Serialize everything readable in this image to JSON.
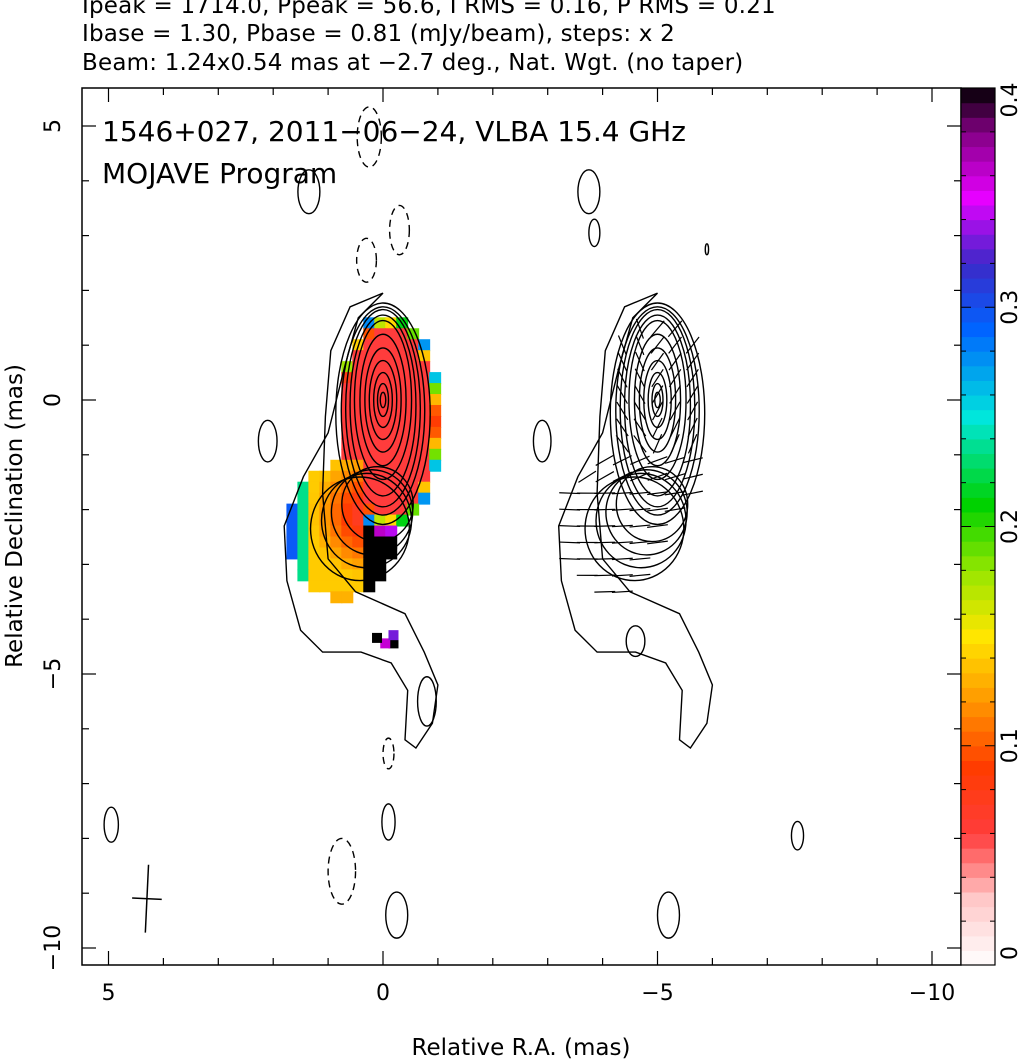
{
  "header": {
    "line1": "Ipeak = 1714.0, Ppeak = 56.6, I RMS = 0.16, P RMS = 0.21",
    "line2": "Ibase = 1.30, Pbase = 0.81 (mJy/beam), steps: x 2",
    "line3": "Beam: 1.24x0.54 mas at −2.7 deg., Nat. Wgt. (no taper)"
  },
  "chart_data": {
    "type": "contour",
    "title": "1546+027, 2011−06−24, VLBA 15.4 GHz",
    "subtitle": "MOJAVE Program",
    "xlabel": "Relative R.A. (mas)",
    "ylabel": "Relative Declination (mas)",
    "xlim": [
      5.5,
      -10.5
    ],
    "ylim": [
      -10.3,
      5.8
    ],
    "xticks": [
      5,
      0,
      -5,
      -10
    ],
    "xtick_labels": [
      "5",
      "0",
      "−5",
      "−10"
    ],
    "yticks": [
      5,
      0,
      -5,
      -10
    ],
    "ytick_labels": [
      "5",
      "0",
      "−5",
      "−10"
    ],
    "colorbar": {
      "min": 0,
      "max": 0.4,
      "ticks": [
        0,
        0.1,
        0.2,
        0.3,
        0.4
      ],
      "tick_labels": [
        "0",
        "0.1",
        "0.2",
        "0.3",
        "0.4"
      ]
    },
    "beam": {
      "major_mas": 1.24,
      "minor_mas": 0.54,
      "pa_deg": -2.7,
      "center": [
        4.3,
        -9.1
      ]
    },
    "peak": {
      "x": 0.0,
      "y": 0.0
    },
    "panel_offset_x": -5.0,
    "contour_levels_mjy": [
      1.3,
      2.6,
      5.2,
      10.4,
      20.8,
      41.6,
      83.2,
      166.4,
      332.8,
      665.6,
      1331.2
    ],
    "extended_emission": {
      "outer": [
        [
          0.0,
          1.95
        ],
        [
          0.6,
          1.7
        ],
        [
          0.95,
          0.9
        ],
        [
          1.05,
          -0.3
        ],
        [
          1.1,
          -1.7
        ],
        [
          1.0,
          -2.9
        ],
        [
          0.5,
          -3.5
        ],
        [
          -0.4,
          -3.9
        ],
        [
          -0.75,
          -4.6
        ],
        [
          -1.0,
          -5.2
        ],
        [
          -0.9,
          -5.9
        ],
        [
          -0.6,
          -6.35
        ],
        [
          -0.4,
          -6.2
        ],
        [
          -0.45,
          -5.3
        ],
        [
          -0.15,
          -4.8
        ],
        [
          0.4,
          -4.6
        ],
        [
          1.1,
          -4.6
        ],
        [
          1.5,
          -4.2
        ],
        [
          1.75,
          -3.3
        ],
        [
          1.8,
          -2.3
        ],
        [
          1.45,
          -1.4
        ],
        [
          1.0,
          -0.6
        ],
        [
          0.7,
          0.6
        ],
        [
          0.45,
          1.5
        ]
      ],
      "levels": [
        {
          "dy": -0.25,
          "rx": 0.86,
          "ry": 2.02,
          "tx": 0.42,
          "ty": -2.35,
          "tr": 0.9
        },
        {
          "dy": -0.2,
          "rx": 0.76,
          "ry": 1.9,
          "tx": 0.3,
          "ty": -2.2,
          "tr": 0.82
        },
        {
          "dy": -0.15,
          "rx": 0.68,
          "ry": 1.8,
          "tx": 0.2,
          "ty": -2.05,
          "tr": 0.74
        },
        {
          "dy": -0.1,
          "rx": 0.6,
          "ry": 1.65,
          "tx": 0.1,
          "ty": -1.9,
          "tr": 0.65
        }
      ],
      "core_ellipses": [
        [
          0.52,
          1.45
        ],
        [
          0.42,
          1.2
        ],
        [
          0.33,
          0.95
        ],
        [
          0.25,
          0.72
        ],
        [
          0.17,
          0.5
        ],
        [
          0.1,
          0.3
        ],
        [
          0.05,
          0.14
        ]
      ]
    },
    "negative_contours": [
      {
        "x": 0.25,
        "y": 4.8,
        "rx": 0.22,
        "ry": 0.55
      },
      {
        "x": -0.3,
        "y": 3.1,
        "rx": 0.18,
        "ry": 0.45
      },
      {
        "x": 0.3,
        "y": 2.55,
        "rx": 0.18,
        "ry": 0.4
      },
      {
        "x": -0.1,
        "y": -6.45,
        "rx": 0.1,
        "ry": 0.28
      },
      {
        "x": 0.75,
        "y": -8.6,
        "rx": 0.25,
        "ry": 0.6
      }
    ],
    "noise_contours": [
      {
        "x": 1.35,
        "y": 3.8,
        "rx": 0.2,
        "ry": 0.4
      },
      {
        "x": 2.1,
        "y": -0.75,
        "rx": 0.17,
        "ry": 0.38
      },
      {
        "x": -0.8,
        "y": -5.5,
        "rx": 0.17,
        "ry": 0.45
      },
      {
        "x": -0.1,
        "y": -7.7,
        "rx": 0.12,
        "ry": 0.33
      },
      {
        "x": -0.25,
        "y": -9.4,
        "rx": 0.2,
        "ry": 0.42
      },
      {
        "x": 4.95,
        "y": -7.75,
        "rx": 0.13,
        "ry": 0.32
      },
      {
        "x": -7.55,
        "y": -7.95,
        "rx": 0.11,
        "ry": 0.26
      },
      {
        "x": -3.75,
        "y": 3.8,
        "rx": 0.2,
        "ry": 0.4
      },
      {
        "x": -3.85,
        "y": 3.05,
        "rx": 0.1,
        "ry": 0.25
      },
      {
        "x": -5.9,
        "y": 2.75,
        "rx": 0.03,
        "ry": 0.1
      },
      {
        "x": -2.9,
        "y": -0.75,
        "rx": 0.16,
        "ry": 0.38
      },
      {
        "x": -4.6,
        "y": -4.4,
        "rx": 0.17,
        "ry": 0.28
      },
      {
        "x": -5.2,
        "y": -9.4,
        "rx": 0.2,
        "ry": 0.42
      }
    ],
    "frac_pol_map": {
      "description": "Fractional polarization per pixel (0 to 0.4) over the source core region",
      "core_value": 0.06,
      "edge_value": 0.3,
      "tail_value": 0.14
    },
    "evpa_vectors": {
      "rows_y": [
        1.3,
        1.0,
        0.7,
        0.4,
        0.1,
        -0.2,
        -0.5,
        -0.8,
        -1.1,
        -1.4,
        -1.7,
        -2.0,
        -2.3,
        -2.6,
        -2.9,
        -3.2,
        -3.5
      ],
      "length_mas": 0.38
    }
  }
}
